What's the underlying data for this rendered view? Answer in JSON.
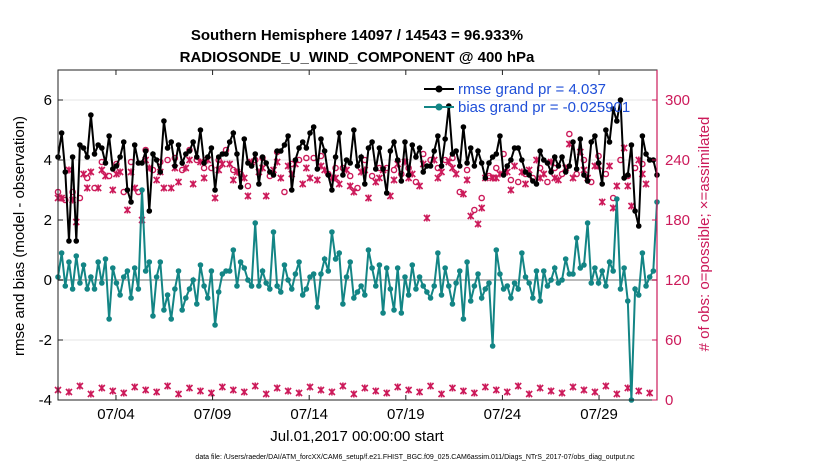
{
  "chart_data": {
    "type": "line",
    "title_line1": "Southern Hemisphere 14097 / 14543 = 96.933%",
    "title_line2": "RADIOSONDE_U_WIND_COMPONENT @ 400 hPa",
    "xlabel": "Jul.01,2017 00:00:00 start",
    "ylabel_left": "rmse and bias (model - observation)",
    "ylabel_right": "# of obs: o=possible; ×=assimilated",
    "x_ticks": [
      "07/04",
      "07/09",
      "07/14",
      "07/19",
      "07/24",
      "07/29"
    ],
    "x_tick_days": [
      4,
      9,
      14,
      19,
      24,
      29
    ],
    "xlim": [
      1,
      32
    ],
    "ylim_left": [
      -4,
      7
    ],
    "y_ticks_left": [
      "-4",
      "-2",
      "0",
      "2",
      "4",
      "6"
    ],
    "ylim_right": [
      0,
      330
    ],
    "y_ticks_right": [
      "0",
      "60",
      "120",
      "180",
      "240",
      "300"
    ],
    "legend": {
      "rmse_label": "rmse grand pr = 4.037",
      "bias_label": "bias grand pr = -0.025901"
    },
    "colors": {
      "rmse": "#000000",
      "bias": "#138585",
      "obs": "#cc1a5a",
      "zero_line": "#bbbbbb"
    },
    "series": [
      {
        "name": "rmse",
        "values": [
          4.1,
          4.9,
          3.6,
          1.3,
          4.1,
          1.3,
          4.5,
          4.4,
          4.1,
          5.5,
          4.2,
          4.5,
          4.4,
          3.9,
          4.8,
          3.7,
          3.8,
          4.1,
          4.6,
          3.0,
          2.6,
          4.5,
          3.9,
          3.9,
          4.3,
          2.3,
          4.2,
          4.0,
          3.6,
          5.3,
          4.4,
          4.6,
          3.8,
          4.5,
          3.9,
          4.2,
          4.3,
          4.6,
          4.1,
          5.0,
          3.9,
          4.1,
          4.4,
          3.0,
          4.1,
          4.2,
          4.2,
          4.6,
          4.9,
          4.2,
          3.1,
          4.7,
          3.9,
          3.8,
          4.2,
          3.2,
          4.1,
          3.9,
          3.6,
          3.5,
          4.3,
          4.3,
          4.5,
          4.8,
          3.0,
          4.0,
          4.4,
          4.6,
          4.4,
          4.9,
          5.1,
          3.7,
          4.7,
          4.3,
          3.5,
          3.0,
          4.1,
          4.9,
          3.5,
          4.0,
          3.9,
          5.0,
          3.8,
          4.1,
          3.2,
          4.4,
          4.6,
          3.7,
          4.4,
          3.7,
          2.9,
          4.3,
          4.6,
          4.0,
          3.3,
          4.6,
          3.5,
          4.5,
          4.1,
          4.4,
          3.6,
          3.8,
          3.8,
          4.3,
          4.8,
          3.8,
          4.7,
          5.8,
          4.2,
          4.3,
          3.8,
          5.1,
          3.9,
          4.4,
          3.8,
          4.3,
          3.9,
          3.4,
          3.9,
          4.1,
          4.2,
          4.8,
          3.5,
          3.8,
          4.0,
          4.4,
          4.4,
          4.0,
          3.6,
          3.5,
          3.3,
          3.2,
          4.3,
          4.0,
          3.9,
          3.6,
          4.1,
          3.8,
          4.1,
          3.6,
          3.8,
          4.6,
          3.7,
          4.7,
          3.5,
          3.3,
          4.6,
          4.8,
          3.9,
          3.2,
          5.0,
          4.6,
          5.7,
          5.3,
          6.0,
          3.4,
          3.5,
          4.5,
          2.3,
          1.8,
          4.8,
          4.2,
          4.0,
          4.0,
          3.5
        ]
      },
      {
        "name": "bias",
        "values": [
          0.1,
          0.9,
          -0.2,
          0.6,
          -0.3,
          0.8,
          -0.1,
          0.5,
          -0.3,
          0.1,
          -0.3,
          0.6,
          -0.1,
          0.7,
          -1.3,
          0.4,
          -0.1,
          -0.5,
          0.1,
          0.3,
          -0.6,
          0.4,
          -0.3,
          3.0,
          0.3,
          0.6,
          -1.2,
          0.1,
          0.6,
          -1.0,
          -0.5,
          -1.3,
          -0.3,
          0.3,
          -1.0,
          -0.6,
          -0.3,
          0.0,
          -0.8,
          0.5,
          -0.2,
          -0.6,
          0.3,
          -1.5,
          -0.4,
          0.2,
          0.3,
          0.3,
          1.0,
          -0.2,
          0.6,
          0.4,
          0.0,
          -0.2,
          1.9,
          -0.2,
          0.3,
          -0.1,
          -0.3,
          1.6,
          -0.2,
          -0.4,
          0.5,
          0.0,
          -0.3,
          0.2,
          0.6,
          -0.5,
          -0.3,
          0.1,
          0.2,
          -0.9,
          0.2,
          0.7,
          0.3,
          1.6,
          0.7,
          0.9,
          -0.8,
          0.1,
          0.6,
          -0.6,
          -0.4,
          -0.2,
          -0.5,
          1.0,
          0.4,
          -0.2,
          0.5,
          -1.1,
          0.4,
          -0.3,
          -1.0,
          0.4,
          -1.1,
          0.1,
          -0.5,
          0.5,
          -0.3,
          0.1,
          -0.2,
          -0.4,
          -0.6,
          -0.2,
          0.9,
          -0.5,
          0.4,
          -0.2,
          -0.8,
          -0.1,
          0.3,
          -1.3,
          0.6,
          -0.7,
          -0.2,
          0.2,
          -0.6,
          -0.3,
          -0.1,
          -2.2,
          1.0,
          0.2,
          -0.3,
          -0.2,
          -0.6,
          -0.1,
          -0.3,
          0.9,
          0.1,
          -0.1,
          -0.6,
          0.3,
          -0.7,
          0.3,
          -0.2,
          0.0,
          0.4,
          -0.1,
          0.0,
          0.7,
          0.2,
          0.2,
          1.4,
          0.4,
          0.5,
          1.9,
          -0.1,
          0.4,
          -0.1,
          0.3,
          -0.2,
          0.6,
          0.3,
          2.7,
          -0.3,
          0.4,
          -0.7,
          -4.0,
          -0.3,
          -0.5,
          0.9,
          -0.2,
          0.1,
          0.3,
          2.6
        ]
      },
      {
        "name": "obs_possible",
        "values": [
          208,
          212,
          200,
          216,
          208,
          190,
          202,
          238,
          222,
          240,
          212,
          222,
          238,
          232,
          224,
          218,
          236,
          238,
          208,
          200,
          238,
          222,
          208,
          190,
          250,
          242,
          230,
          230,
          238,
          222,
          240,
          222,
          242,
          228,
          230,
          242,
          250,
          226,
          240,
          248,
          232,
          250,
          232,
          212,
          240,
          246,
          250,
          246,
          230,
          238,
          226,
          232,
          214,
          248,
          240,
          238,
          242,
          214,
          224,
          240,
          248,
          232,
          208,
          244,
          236,
          246,
          240,
          226,
          242,
          232,
          242,
          230,
          244,
          240,
          226,
          232,
          232,
          226,
          232,
          240,
          224,
          218,
          212,
          238,
          240,
          212,
          224,
          228,
          232,
          240,
          232,
          214,
          230,
          246,
          226,
          248,
          232,
          236,
          218,
          224,
          246,
          192,
          240,
          250,
          232,
          238,
          240,
          248,
          242,
          236,
          208,
          216,
          230,
          194,
          190,
          186,
          202,
          232,
          224,
          232,
          232,
          236,
          246,
          238,
          220,
          244,
          218,
          238,
          226,
          240,
          222,
          250,
          232,
          236,
          218,
          248,
          232,
          230,
          226,
          242,
          266,
          232,
          226,
          258,
          240,
          232,
          218,
          244,
          244,
          208,
          226,
          244,
          202,
          224,
          240,
          262,
          224,
          204,
          232,
          250,
          236,
          226
        ]
      },
      {
        "name": "obs_assimilated",
        "values": [
          202,
          202,
          206,
          230,
          200,
          178,
          194,
          226,
          212,
          228,
          204,
          212,
          230,
          224,
          216,
          210,
          226,
          228,
          198,
          190,
          228,
          212,
          198,
          180,
          240,
          232,
          220,
          220,
          228,
          212,
          230,
          212,
          232,
          218,
          220,
          232,
          240,
          216,
          230,
          238,
          222,
          240,
          222,
          202,
          230,
          236,
          240,
          236,
          220,
          228,
          216,
          222,
          204,
          238,
          230,
          228,
          232,
          204,
          214,
          230,
          238,
          222,
          198,
          234,
          226,
          236,
          230,
          216,
          232,
          222,
          232,
          220,
          234,
          230,
          216,
          222,
          222,
          216,
          222,
          230,
          214,
          208,
          202,
          228,
          230,
          202,
          214,
          218,
          222,
          230,
          222,
          204,
          220,
          236,
          216,
          238,
          222,
          226,
          208,
          214,
          236,
          182,
          230,
          240,
          222,
          228,
          230,
          238,
          232,
          226,
          198,
          206,
          220,
          184,
          180,
          176,
          192,
          222,
          214,
          222,
          222,
          226,
          236,
          228,
          210,
          234,
          208,
          228,
          216,
          230,
          212,
          240,
          222,
          226,
          208,
          238,
          222,
          220,
          216,
          232,
          256,
          222,
          216,
          248,
          230,
          222,
          208,
          234,
          234,
          198,
          216,
          234,
          192,
          214,
          230,
          252,
          214,
          194,
          222,
          240,
          226,
          216
        ]
      }
    ]
  },
  "footer_text": "data file: /Users/raeder/DAI/ATM_forcXX/CAM6_setup/f.e21.FHIST_BGC.f09_025.CAM6assim.011/Diags_NTrS_2017-07/obs_diag_output.nc"
}
